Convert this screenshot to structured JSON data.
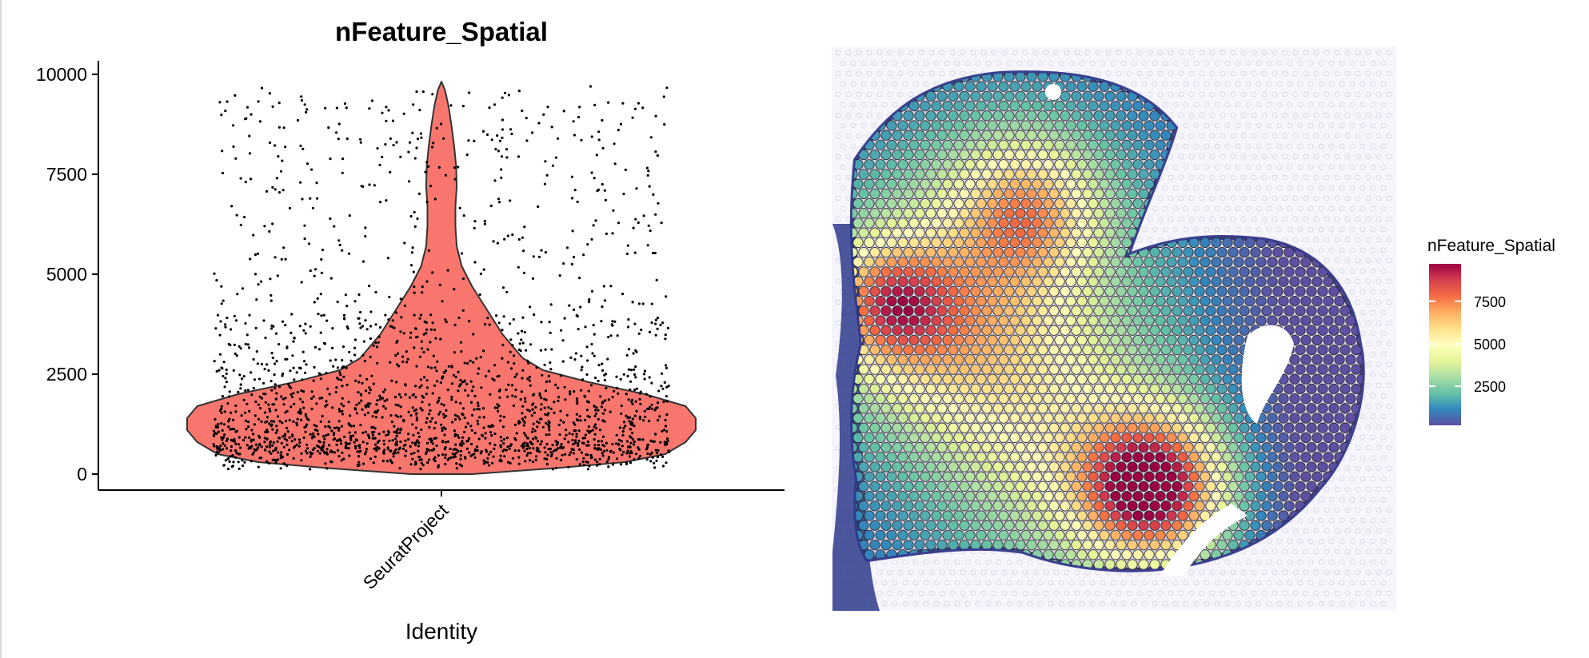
{
  "chart_data": [
    {
      "type": "violin",
      "title": "nFeature_Spatial",
      "xlabel": "Identity",
      "ylabel": "",
      "categories": [
        "SeuratProject"
      ],
      "ylim": [
        -400,
        10250
      ],
      "yticks": [
        0,
        2500,
        5000,
        7500,
        10000
      ],
      "violin_color": "#F8766D",
      "point_color": "#000000",
      "violin_profile": [
        [
          0,
          0.12
        ],
        [
          150,
          0.45
        ],
        [
          300,
          0.72
        ],
        [
          500,
          0.88
        ],
        [
          800,
          0.96
        ],
        [
          1100,
          1.0
        ],
        [
          1400,
          1.0
        ],
        [
          1700,
          0.96
        ],
        [
          2000,
          0.8
        ],
        [
          2300,
          0.58
        ],
        [
          2600,
          0.4
        ],
        [
          2900,
          0.32
        ],
        [
          3200,
          0.28
        ],
        [
          3500,
          0.24
        ],
        [
          3800,
          0.21
        ],
        [
          4200,
          0.17
        ],
        [
          4700,
          0.12
        ],
        [
          5200,
          0.08
        ],
        [
          5700,
          0.06
        ],
        [
          6200,
          0.055
        ],
        [
          6700,
          0.055
        ],
        [
          7200,
          0.06
        ],
        [
          7700,
          0.058
        ],
        [
          8200,
          0.05
        ],
        [
          8700,
          0.04
        ],
        [
          9200,
          0.028
        ],
        [
          9600,
          0.014
        ],
        [
          9820,
          0.0
        ]
      ]
    },
    {
      "type": "heatmap",
      "title": "",
      "legend": {
        "title": "nFeature_Spatial",
        "ticks": [
          2500,
          5000,
          7500
        ],
        "range": [
          200,
          9700
        ],
        "placement": "right"
      },
      "colorscale": [
        "#5E4FA2",
        "#3288BD",
        "#66C2A5",
        "#ABDDA4",
        "#E6F598",
        "#FFFFBF",
        "#FEE08B",
        "#FDAE61",
        "#F46D43",
        "#D53E4F",
        "#9E0142"
      ]
    }
  ]
}
